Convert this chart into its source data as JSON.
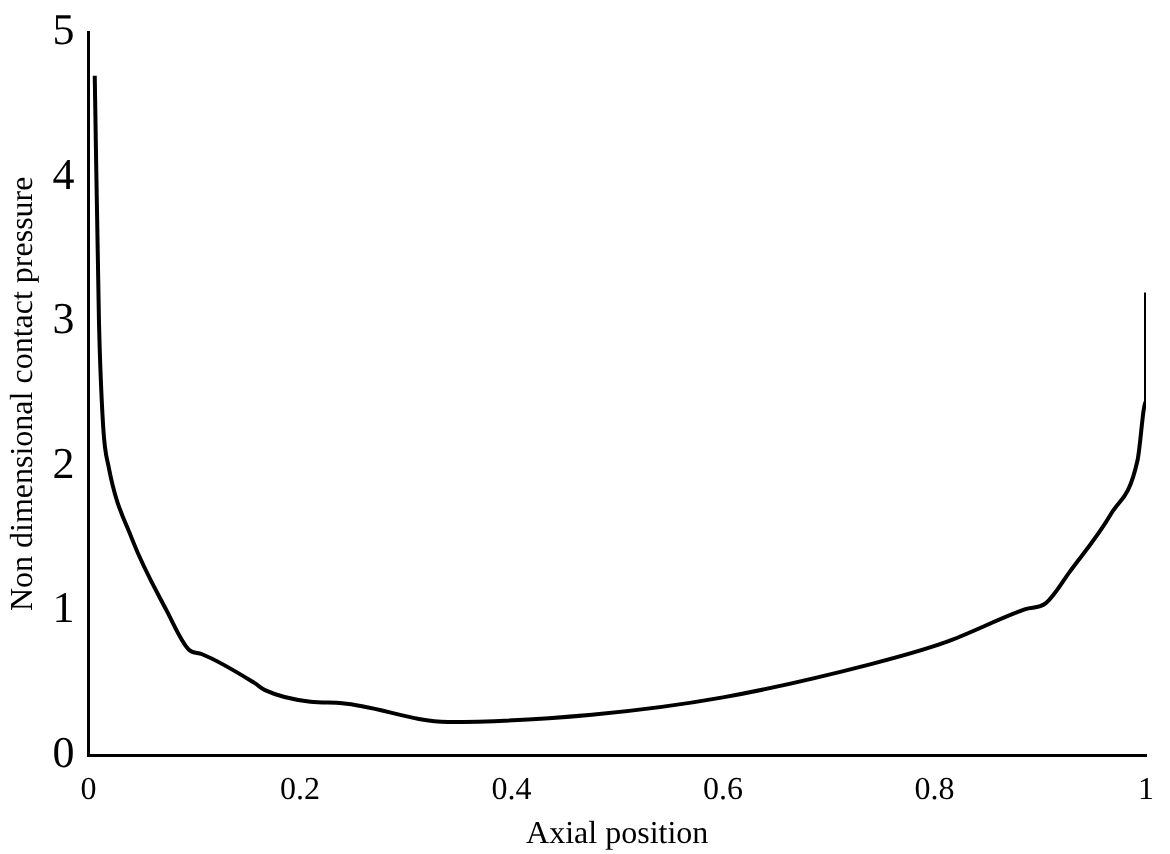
{
  "chart_data": {
    "type": "line",
    "xlabel": "Axial position",
    "ylabel": "Non dimensional contact pressure",
    "x": [
      0.006,
      0.01,
      0.014,
      0.019,
      0.041,
      0.074,
      0.095,
      0.107,
      0.157,
      0.167,
      0.21,
      0.24,
      0.34,
      0.476,
      0.6,
      0.74,
      0.81,
      0.886,
      0.905,
      0.928,
      0.967,
      0.992,
      1.0,
      1.0
    ],
    "series": [
      {
        "color": "#000000",
        "values": [
          4.7,
          3,
          2.27,
          2,
          1.5,
          1,
          0.73,
          0.7,
          0.5,
          0.45,
          0.37,
          0.36,
          0.23,
          0.28,
          0.4,
          0.63,
          0.78,
          1.01,
          1.05,
          1.27,
          1.67,
          2.04,
          2.45,
          3.2
        ]
      }
    ],
    "xlim": [
      0,
      1
    ],
    "xticks": [
      0,
      0.2,
      0.4,
      0.6,
      0.8,
      1
    ],
    "ylim": [
      0,
      5
    ],
    "yticks": [
      0,
      1,
      2,
      3,
      4,
      5
    ],
    "grid": false,
    "legend": false,
    "marker": "none",
    "line_style": "solid"
  }
}
